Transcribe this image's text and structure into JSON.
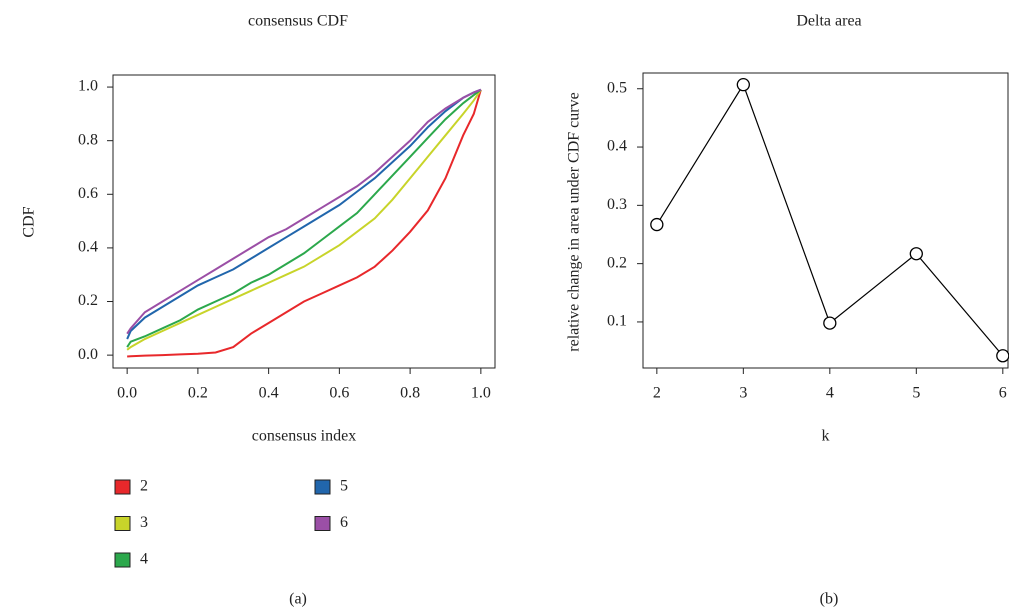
{
  "chart_data": [
    {
      "type": "line",
      "title": "consensus CDF",
      "xlabel": "consensus index",
      "ylabel": "CDF",
      "caption": "(a)",
      "x": [
        0,
        0.01,
        0.05,
        0.1,
        0.15,
        0.2,
        0.25,
        0.3,
        0.35,
        0.4,
        0.45,
        0.5,
        0.55,
        0.6,
        0.65,
        0.7,
        0.75,
        0.8,
        0.85,
        0.9,
        0.95,
        0.98,
        1.0
      ],
      "series": [
        {
          "name": "2",
          "color": "#e8282b",
          "values": [
            -0.005,
            -0.004,
            -0.002,
            0.0,
            0.003,
            0.005,
            0.01,
            0.03,
            0.08,
            0.12,
            0.16,
            0.2,
            0.23,
            0.26,
            0.29,
            0.33,
            0.39,
            0.46,
            0.54,
            0.66,
            0.82,
            0.9,
            0.99
          ]
        },
        {
          "name": "3",
          "color": "#c8d42a",
          "values": [
            0.02,
            0.03,
            0.06,
            0.09,
            0.12,
            0.15,
            0.18,
            0.21,
            0.24,
            0.27,
            0.3,
            0.33,
            0.37,
            0.41,
            0.46,
            0.51,
            0.58,
            0.66,
            0.74,
            0.82,
            0.9,
            0.95,
            0.99
          ]
        },
        {
          "name": "4",
          "color": "#2ca84c",
          "values": [
            0.03,
            0.05,
            0.07,
            0.1,
            0.13,
            0.17,
            0.2,
            0.23,
            0.27,
            0.3,
            0.34,
            0.38,
            0.43,
            0.48,
            0.53,
            0.6,
            0.67,
            0.74,
            0.81,
            0.88,
            0.94,
            0.97,
            0.99
          ]
        },
        {
          "name": "5",
          "color": "#2166ac",
          "values": [
            0.06,
            0.09,
            0.14,
            0.18,
            0.22,
            0.26,
            0.29,
            0.32,
            0.36,
            0.4,
            0.44,
            0.48,
            0.52,
            0.56,
            0.61,
            0.66,
            0.72,
            0.78,
            0.85,
            0.91,
            0.96,
            0.98,
            0.99
          ]
        },
        {
          "name": "6",
          "color": "#9b4fa6",
          "values": [
            0.08,
            0.1,
            0.16,
            0.2,
            0.24,
            0.28,
            0.32,
            0.36,
            0.4,
            0.44,
            0.47,
            0.51,
            0.55,
            0.59,
            0.63,
            0.68,
            0.74,
            0.8,
            0.87,
            0.92,
            0.96,
            0.98,
            0.99
          ]
        }
      ],
      "xlim": [
        -0.04,
        1.04
      ],
      "ylim": [
        -0.048,
        1.045
      ],
      "xticks": [
        {
          "value": 0,
          "label": "0.0"
        },
        0.2,
        0.4,
        0.6,
        0.8,
        {
          "value": 1,
          "label": "1.0"
        }
      ],
      "yticks": [
        {
          "value": 0,
          "label": "0.0"
        },
        0.2,
        0.4,
        0.6,
        0.8,
        {
          "value": 1,
          "label": "1.0"
        }
      ],
      "legend": "bottom"
    },
    {
      "type": "line",
      "title": "Delta area",
      "xlabel": "k",
      "ylabel": "relative change in area under CDF curve",
      "caption": "(b)",
      "x": [
        2,
        3,
        4,
        5,
        6
      ],
      "markers": true,
      "series": [
        {
          "color": "#000000",
          "values": [
            0.267,
            0.507,
            0.098,
            0.217,
            0.042
          ]
        }
      ],
      "xlim": [
        1.84,
        6.06
      ],
      "ylim": [
        0.021,
        0.527
      ],
      "xticks": [
        2,
        3,
        4,
        5,
        6
      ],
      "yticks": [
        0.1,
        0.2,
        0.3,
        0.4,
        0.5
      ]
    }
  ]
}
